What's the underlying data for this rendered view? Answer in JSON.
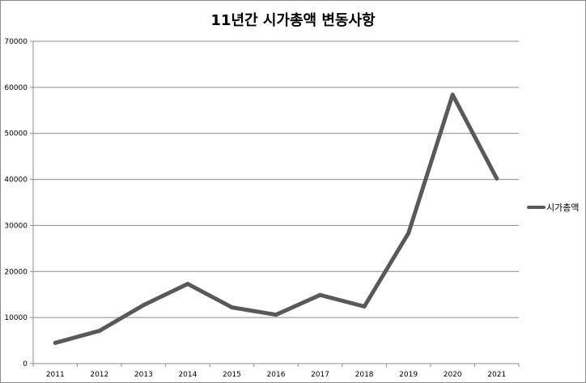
{
  "chart_data": {
    "type": "line",
    "title": "11년간 시가총액 변동사항",
    "xlabel": "",
    "ylabel": "",
    "categories": [
      "2011",
      "2012",
      "2013",
      "2014",
      "2015",
      "2016",
      "2017",
      "2018",
      "2019",
      "2020",
      "2021"
    ],
    "series": [
      {
        "name": "시가총액",
        "values": [
          4500,
          7100,
          12700,
          17300,
          12200,
          10600,
          14900,
          12400,
          28300,
          58400,
          40200
        ],
        "color": "#595959"
      }
    ],
    "ylim": [
      0,
      70000
    ],
    "yticks": [
      "0",
      "10000",
      "20000",
      "30000",
      "40000",
      "50000",
      "60000",
      "70000"
    ],
    "grid": true,
    "legend_position": "right"
  }
}
